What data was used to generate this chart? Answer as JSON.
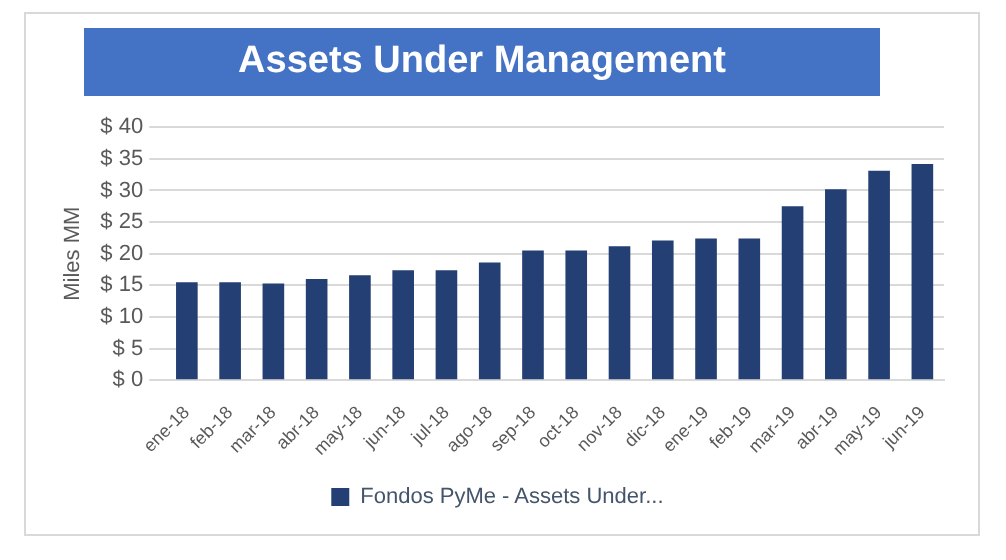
{
  "chart_data": {
    "type": "bar",
    "title": "Assets Under Management",
    "ylabel": "Miles MM",
    "categories": [
      "ene-18",
      "feb-18",
      "mar-18",
      "abr-18",
      "may-18",
      "jun-18",
      "jul-18",
      "ago-18",
      "sep-18",
      "oct-18",
      "nov-18",
      "dic-18",
      "ene-19",
      "feb-19",
      "mar-19",
      "abr-19",
      "may-19",
      "jun-19"
    ],
    "series": [
      {
        "name": "Fondos PyMe - Assets Under...",
        "color": "#243f73",
        "values": [
          15.5,
          15.5,
          15.3,
          16.0,
          16.6,
          17.4,
          17.4,
          18.6,
          20.5,
          20.5,
          21.2,
          22.1,
          22.4,
          22.4,
          27.5,
          30.2,
          33.1,
          34.2
        ]
      }
    ],
    "ylim": [
      0,
      40
    ],
    "yticks": [
      {
        "value": 0,
        "label": "$ 0"
      },
      {
        "value": 5,
        "label": "$ 5"
      },
      {
        "value": 10,
        "label": "$ 10"
      },
      {
        "value": 15,
        "label": "$ 15"
      },
      {
        "value": 20,
        "label": "$ 20"
      },
      {
        "value": 25,
        "label": "$ 25"
      },
      {
        "value": 30,
        "label": "$ 30"
      },
      {
        "value": 35,
        "label": "$ 35"
      },
      {
        "value": 40,
        "label": "$ 40"
      }
    ],
    "grid": "y",
    "legend": "bottom"
  }
}
